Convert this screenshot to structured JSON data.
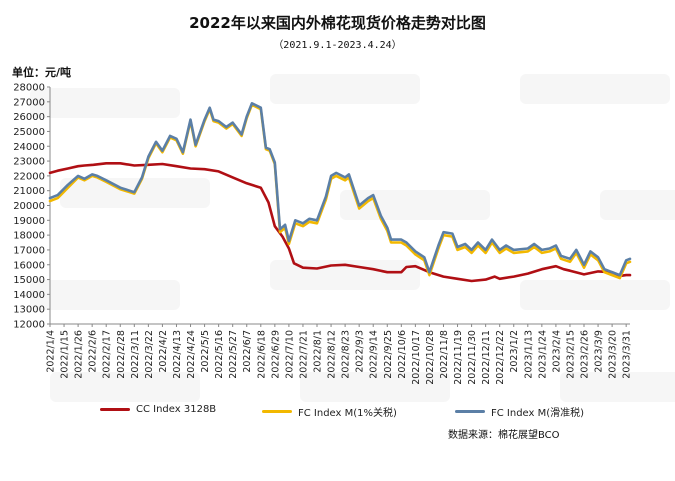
{
  "chart_data": {
    "type": "line",
    "title": "2022年以来国内外棉花现货价格走势对比图",
    "subtitle": "（2021.9.1-2023.4.24）",
    "ylabel": "单位：元/吨",
    "ylim": [
      12000,
      28000
    ],
    "yticks": [
      12000,
      13000,
      14000,
      15000,
      16000,
      17000,
      18000,
      19000,
      20000,
      21000,
      22000,
      23000,
      24000,
      25000,
      26000,
      27000,
      28000
    ],
    "x_categories": [
      "2022/1/4",
      "2022/1/15",
      "2022/1/26",
      "2022/2/6",
      "2022/2/17",
      "2022/2/28",
      "2022/3/11",
      "2022/3/22",
      "2022/4/2",
      "2022/4/13",
      "2022/4/24",
      "2022/5/5",
      "2022/5/16",
      "2022/5/27",
      "2022/6/7",
      "2022/6/18",
      "2022/6/29",
      "2022/7/10",
      "2022/7/21",
      "2022/8/1",
      "2022/8/12",
      "2022/8/23",
      "2022/9/3",
      "2022/9/14",
      "2022/9/25",
      "2022/10/6",
      "2022/10/17",
      "2022/10/28",
      "2022/11/8",
      "2022/11/19",
      "2022/11/30",
      "2022/12/11",
      "2022/12/22",
      "2023/1/2",
      "2023/1/13",
      "2023/1/24",
      "2023/2/4",
      "2023/2/15",
      "2023/2/26",
      "2023/3/9",
      "2023/3/20",
      "2023/3/31"
    ],
    "grid": false,
    "legend_position": "bottom",
    "series": [
      {
        "name": "CC Index 3128B",
        "color": "#b00f14",
        "points": [
          [
            "2022/1/4",
            22200
          ],
          [
            "2022/1/10",
            22350
          ],
          [
            "2022/1/18",
            22500
          ],
          [
            "2022/1/26",
            22650
          ],
          [
            "2022/1/31",
            22700
          ],
          [
            "2022/2/7",
            22750
          ],
          [
            "2022/2/17",
            22850
          ],
          [
            "2022/2/28",
            22850
          ],
          [
            "2022/3/11",
            22700
          ],
          [
            "2022/3/22",
            22750
          ],
          [
            "2022/4/2",
            22800
          ],
          [
            "2022/4/13",
            22650
          ],
          [
            "2022/4/24",
            22500
          ],
          [
            "2022/5/5",
            22450
          ],
          [
            "2022/5/16",
            22300
          ],
          [
            "2022/5/27",
            21900
          ],
          [
            "2022/6/7",
            21500
          ],
          [
            "2022/6/18",
            21200
          ],
          [
            "2022/6/24",
            20200
          ],
          [
            "2022/6/29",
            18600
          ],
          [
            "2022/7/5",
            17900
          ],
          [
            "2022/7/10",
            17100
          ],
          [
            "2022/7/14",
            16100
          ],
          [
            "2022/7/21",
            15800
          ],
          [
            "2022/8/1",
            15750
          ],
          [
            "2022/8/12",
            15950
          ],
          [
            "2022/8/23",
            16000
          ],
          [
            "2022/9/3",
            15850
          ],
          [
            "2022/9/14",
            15700
          ],
          [
            "2022/9/25",
            15500
          ],
          [
            "2022/10/6",
            15500
          ],
          [
            "2022/10/10",
            15850
          ],
          [
            "2022/10/17",
            15900
          ],
          [
            "2022/10/28",
            15500
          ],
          [
            "2022/11/8",
            15200
          ],
          [
            "2022/11/19",
            15050
          ],
          [
            "2022/11/30",
            14900
          ],
          [
            "2022/12/11",
            15000
          ],
          [
            "2022/12/18",
            15200
          ],
          [
            "2022/12/22",
            15050
          ],
          [
            "2023/1/2",
            15200
          ],
          [
            "2023/1/13",
            15400
          ],
          [
            "2023/1/24",
            15700
          ],
          [
            "2023/2/4",
            15900
          ],
          [
            "2023/2/10",
            15700
          ],
          [
            "2023/2/15",
            15600
          ],
          [
            "2023/2/26",
            15350
          ],
          [
            "2023/3/9",
            15550
          ],
          [
            "2023/3/20",
            15500
          ],
          [
            "2023/3/26",
            15250
          ],
          [
            "2023/3/31",
            15300
          ],
          [
            "2023/4/3",
            15300
          ]
        ]
      },
      {
        "name": "FC Index M(1%关税)",
        "color": "#f2b800",
        "points": [
          [
            "2022/1/4",
            20300
          ],
          [
            "2022/1/10",
            20500
          ],
          [
            "2022/1/18",
            21200
          ],
          [
            "2022/1/26",
            21900
          ],
          [
            "2022/1/31",
            21700
          ],
          [
            "2022/2/6",
            22000
          ],
          [
            "2022/2/10",
            21900
          ],
          [
            "2022/2/17",
            21600
          ],
          [
            "2022/2/28",
            21100
          ],
          [
            "2022/3/11",
            20800
          ],
          [
            "2022/3/17",
            21800
          ],
          [
            "2022/3/22",
            23200
          ],
          [
            "2022/3/28",
            24200
          ],
          [
            "2022/4/2",
            23600
          ],
          [
            "2022/4/8",
            24600
          ],
          [
            "2022/4/13",
            24400
          ],
          [
            "2022/4/18",
            23500
          ],
          [
            "2022/4/24",
            25700
          ],
          [
            "2022/4/28",
            24000
          ],
          [
            "2022/5/5",
            25700
          ],
          [
            "2022/5/9",
            26500
          ],
          [
            "2022/5/12",
            25700
          ],
          [
            "2022/5/16",
            25600
          ],
          [
            "2022/5/22",
            25200
          ],
          [
            "2022/5/27",
            25500
          ],
          [
            "2022/6/3",
            24700
          ],
          [
            "2022/6/7",
            25900
          ],
          [
            "2022/6/11",
            26800
          ],
          [
            "2022/6/18",
            26500
          ],
          [
            "2022/6/22",
            23800
          ],
          [
            "2022/6/25",
            23700
          ],
          [
            "2022/6/29",
            22800
          ],
          [
            "2022/7/3",
            18200
          ],
          [
            "2022/7/7",
            18500
          ],
          [
            "2022/7/10",
            17400
          ],
          [
            "2022/7/15",
            18800
          ],
          [
            "2022/7/21",
            18600
          ],
          [
            "2022/7/26",
            18900
          ],
          [
            "2022/8/1",
            18800
          ],
          [
            "2022/8/8",
            20400
          ],
          [
            "2022/8/12",
            21800
          ],
          [
            "2022/8/16",
            22000
          ],
          [
            "2022/8/23",
            21700
          ],
          [
            "2022/8/26",
            21900
          ],
          [
            "2022/9/3",
            19800
          ],
          [
            "2022/9/10",
            20300
          ],
          [
            "2022/9/14",
            20500
          ],
          [
            "2022/9/20",
            19100
          ],
          [
            "2022/9/25",
            18300
          ],
          [
            "2022/9/28",
            17500
          ],
          [
            "2022/10/6",
            17500
          ],
          [
            "2022/10/10",
            17300
          ],
          [
            "2022/10/17",
            16700
          ],
          [
            "2022/10/24",
            16300
          ],
          [
            "2022/10/28",
            15300
          ],
          [
            "2022/11/4",
            17100
          ],
          [
            "2022/11/8",
            18000
          ],
          [
            "2022/11/15",
            17900
          ],
          [
            "2022/11/19",
            17000
          ],
          [
            "2022/11/25",
            17200
          ],
          [
            "2022/11/30",
            16800
          ],
          [
            "2022/12/5",
            17300
          ],
          [
            "2022/12/11",
            16800
          ],
          [
            "2022/12/16",
            17500
          ],
          [
            "2022/12/22",
            16800
          ],
          [
            "2022/12/27",
            17100
          ],
          [
            "2023/1/2",
            16800
          ],
          [
            "2023/1/13",
            16900
          ],
          [
            "2023/1/18",
            17200
          ],
          [
            "2023/1/24",
            16800
          ],
          [
            "2023/1/30",
            16900
          ],
          [
            "2023/2/4",
            17100
          ],
          [
            "2023/2/8",
            16400
          ],
          [
            "2023/2/15",
            16200
          ],
          [
            "2023/2/20",
            16800
          ],
          [
            "2023/2/26",
            15800
          ],
          [
            "2023/3/3",
            16700
          ],
          [
            "2023/3/9",
            16300
          ],
          [
            "2023/3/14",
            15500
          ],
          [
            "2023/3/20",
            15300
          ],
          [
            "2023/3/26",
            15100
          ],
          [
            "2023/3/31",
            16100
          ],
          [
            "2023/4/3",
            16200
          ]
        ]
      },
      {
        "name": "FC Index M(滑准税)",
        "color": "#5b7fa6",
        "points": [
          [
            "2022/1/4",
            20500
          ],
          [
            "2022/1/10",
            20700
          ],
          [
            "2022/1/18",
            21400
          ],
          [
            "2022/1/26",
            22000
          ],
          [
            "2022/1/31",
            21800
          ],
          [
            "2022/2/6",
            22100
          ],
          [
            "2022/2/10",
            22000
          ],
          [
            "2022/2/17",
            21700
          ],
          [
            "2022/2/28",
            21200
          ],
          [
            "2022/3/11",
            20900
          ],
          [
            "2022/3/17",
            21900
          ],
          [
            "2022/3/22",
            23300
          ],
          [
            "2022/3/28",
            24300
          ],
          [
            "2022/4/2",
            23700
          ],
          [
            "2022/4/8",
            24700
          ],
          [
            "2022/4/13",
            24500
          ],
          [
            "2022/4/18",
            23600
          ],
          [
            "2022/4/24",
            25800
          ],
          [
            "2022/4/28",
            24100
          ],
          [
            "2022/5/5",
            25800
          ],
          [
            "2022/5/9",
            26600
          ],
          [
            "2022/5/12",
            25800
          ],
          [
            "2022/5/16",
            25700
          ],
          [
            "2022/5/22",
            25300
          ],
          [
            "2022/5/27",
            25600
          ],
          [
            "2022/6/3",
            24800
          ],
          [
            "2022/6/7",
            26000
          ],
          [
            "2022/6/11",
            26900
          ],
          [
            "2022/6/18",
            26600
          ],
          [
            "2022/6/22",
            23900
          ],
          [
            "2022/6/25",
            23800
          ],
          [
            "2022/6/29",
            22900
          ],
          [
            "2022/7/3",
            18400
          ],
          [
            "2022/7/7",
            18700
          ],
          [
            "2022/7/10",
            17600
          ],
          [
            "2022/7/15",
            19000
          ],
          [
            "2022/7/21",
            18800
          ],
          [
            "2022/7/26",
            19100
          ],
          [
            "2022/8/1",
            19000
          ],
          [
            "2022/8/8",
            20600
          ],
          [
            "2022/8/12",
            22000
          ],
          [
            "2022/8/16",
            22200
          ],
          [
            "2022/8/23",
            21900
          ],
          [
            "2022/8/26",
            22100
          ],
          [
            "2022/9/3",
            20000
          ],
          [
            "2022/9/10",
            20500
          ],
          [
            "2022/9/14",
            20700
          ],
          [
            "2022/9/20",
            19300
          ],
          [
            "2022/9/25",
            18500
          ],
          [
            "2022/9/28",
            17700
          ],
          [
            "2022/10/6",
            17700
          ],
          [
            "2022/10/10",
            17500
          ],
          [
            "2022/10/17",
            16900
          ],
          [
            "2022/10/24",
            16500
          ],
          [
            "2022/10/28",
            15500
          ],
          [
            "2022/11/4",
            17300
          ],
          [
            "2022/11/8",
            18200
          ],
          [
            "2022/11/15",
            18100
          ],
          [
            "2022/11/19",
            17200
          ],
          [
            "2022/11/25",
            17400
          ],
          [
            "2022/11/30",
            17000
          ],
          [
            "2022/12/5",
            17500
          ],
          [
            "2022/12/11",
            17000
          ],
          [
            "2022/12/16",
            17700
          ],
          [
            "2022/12/22",
            17000
          ],
          [
            "2022/12/27",
            17300
          ],
          [
            "2023/1/2",
            17000
          ],
          [
            "2023/1/13",
            17100
          ],
          [
            "2023/1/18",
            17400
          ],
          [
            "2023/1/24",
            17000
          ],
          [
            "2023/1/30",
            17100
          ],
          [
            "2023/2/4",
            17300
          ],
          [
            "2023/2/8",
            16600
          ],
          [
            "2023/2/15",
            16400
          ],
          [
            "2023/2/20",
            17000
          ],
          [
            "2023/2/26",
            16000
          ],
          [
            "2023/3/3",
            16900
          ],
          [
            "2023/3/9",
            16500
          ],
          [
            "2023/3/14",
            15700
          ],
          [
            "2023/3/20",
            15500
          ],
          [
            "2023/3/26",
            15300
          ],
          [
            "2023/3/31",
            16300
          ],
          [
            "2023/4/3",
            16400
          ]
        ]
      }
    ],
    "source": "数据来源：棉花展望BCO"
  }
}
